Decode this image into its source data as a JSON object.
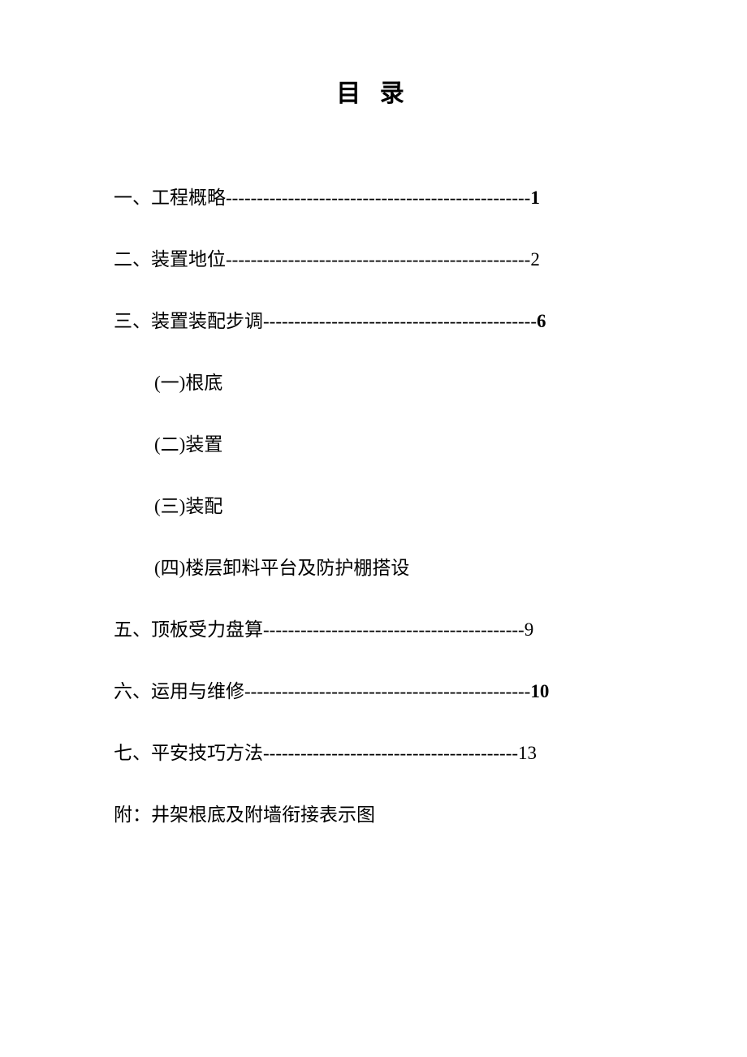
{
  "title": "目 录",
  "entries": [
    {
      "label": "一、工程概略",
      "dashes": "-------------------------------------------------",
      "page": "1",
      "label_bold": false,
      "page_bold": true
    },
    {
      "label": "二、装置地位",
      "dashes": "-------------------------------------------------",
      "page": "2",
      "label_bold": false,
      "page_bold": false
    },
    {
      "label": "三、装置装配步调",
      "dashes": "--------------------------------------------",
      "page": "6",
      "label_bold": false,
      "page_bold": true
    }
  ],
  "sub_entries": [
    {
      "label": "(一)根底"
    },
    {
      "label": "(二)装置"
    },
    {
      "label": "(三)装配"
    },
    {
      "label": "(四)楼层卸料平台及防护棚搭设"
    }
  ],
  "entries2": [
    {
      "label": "五、顶板受力盘算",
      "dashes": "------------------------------------------",
      "page": "9",
      "label_bold": false,
      "page_bold": false
    },
    {
      "label": "六、运用与维修",
      "dashes": "----------------------------------------------",
      "page": "10",
      "label_bold": false,
      "page_bold": true
    },
    {
      "label": "七、平安技巧方法",
      "dashes": "-----------------------------------------",
      "page": "13",
      "label_bold": false,
      "page_bold": false
    }
  ],
  "appendix": "附：井架根底及附墙衔接表示图",
  "style": {
    "background_color": "#ffffff",
    "text_color": "#000000",
    "title_fontsize": 30,
    "body_fontsize": 23,
    "font_family": "SimSun"
  }
}
